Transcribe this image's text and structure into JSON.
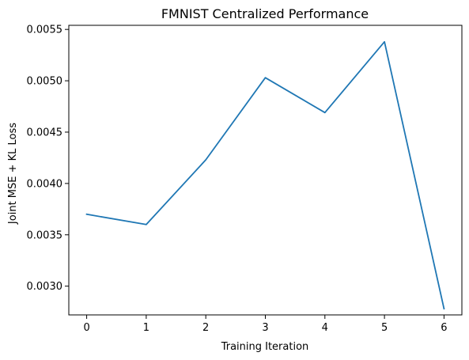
{
  "chart_data": {
    "type": "line",
    "title": "FMNIST Centralized Performance",
    "xlabel": "Training Iteration",
    "ylabel": "Joint MSE + KL Loss",
    "x": [
      0,
      1,
      2,
      3,
      4,
      5,
      6
    ],
    "xticks": [
      "0",
      "1",
      "2",
      "3",
      "4",
      "5",
      "6"
    ],
    "xlim": [
      -0.3,
      6.3
    ],
    "yticks": [
      "0.0030",
      "0.0035",
      "0.0040",
      "0.0045",
      "0.0050",
      "0.0055"
    ],
    "ylim": [
      0.00272,
      0.00554
    ],
    "grid": false,
    "series": [
      {
        "values": [
          0.0037,
          0.0036,
          0.00423,
          0.00503,
          0.00469,
          0.00538,
          0.00278
        ],
        "color": "#1f77b4"
      }
    ]
  }
}
